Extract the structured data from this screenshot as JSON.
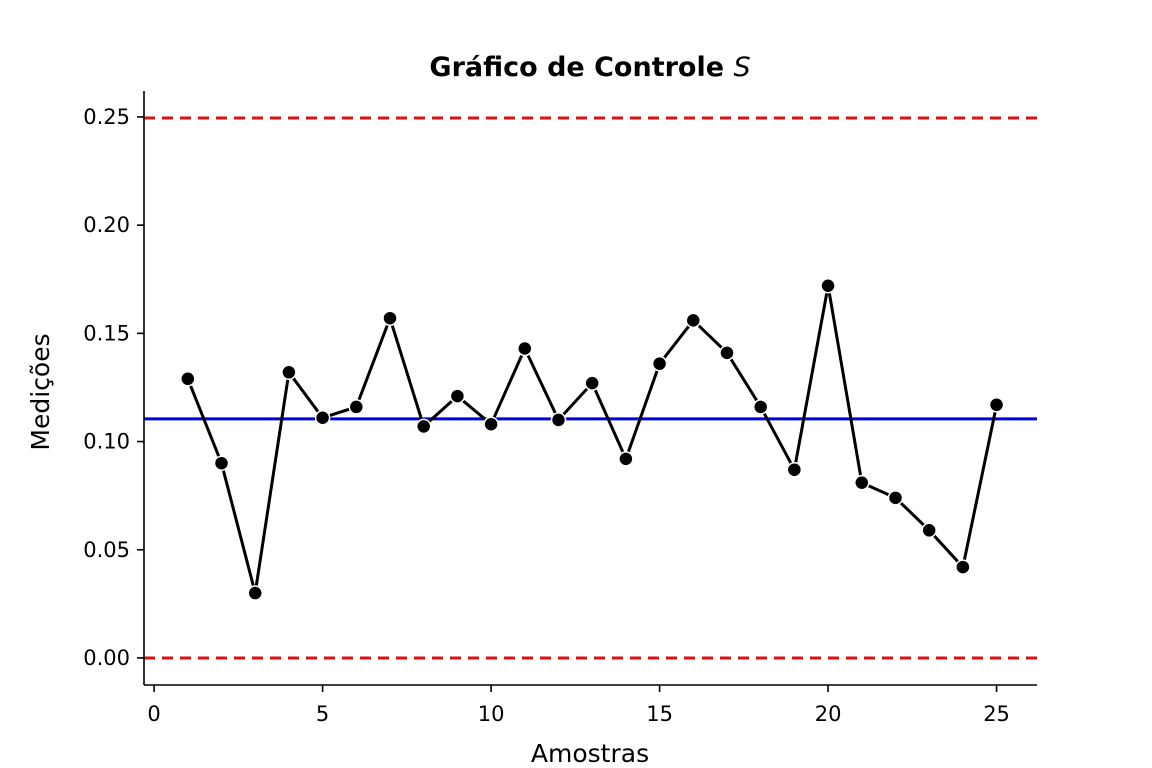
{
  "chart_data": {
    "type": "line",
    "title": "Gráfico de Controle",
    "title_symbol": "S",
    "xlabel": "Amostras",
    "ylabel": "Medições",
    "xlim": [
      -0.3,
      26.2
    ],
    "ylim": [
      -0.0125,
      0.262
    ],
    "xticks": [
      0,
      5,
      10,
      15,
      20,
      25
    ],
    "yticks": [
      0.0,
      0.05,
      0.1,
      0.15,
      0.2,
      0.25
    ],
    "x": [
      1,
      2,
      3,
      4,
      5,
      6,
      7,
      8,
      9,
      10,
      11,
      12,
      13,
      14,
      15,
      16,
      17,
      18,
      19,
      20,
      21,
      22,
      23,
      24,
      25
    ],
    "values": [
      0.129,
      0.09,
      0.03,
      0.132,
      0.111,
      0.116,
      0.157,
      0.107,
      0.121,
      0.108,
      0.143,
      0.11,
      0.127,
      0.092,
      0.136,
      0.156,
      0.141,
      0.116,
      0.087,
      0.172,
      0.081,
      0.074,
      0.059,
      0.042,
      0.117
    ],
    "center_line": 0.1105,
    "upper_control_limit": 0.2495,
    "lower_control_limit": 0.0,
    "colors": {
      "series": "#000000",
      "center_line": "#0000dd",
      "control_limits": "#dd1111"
    },
    "grid": false
  }
}
